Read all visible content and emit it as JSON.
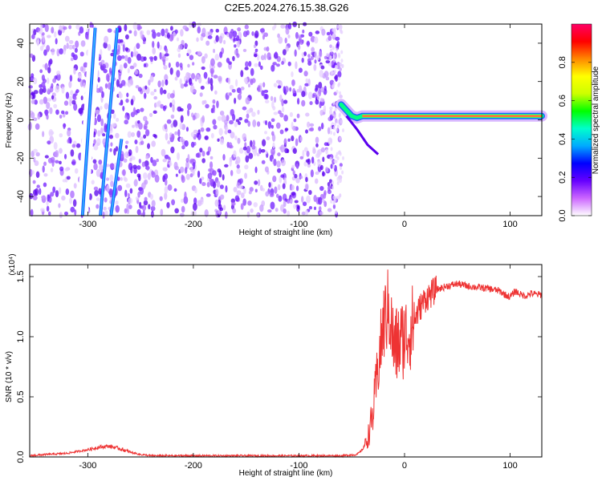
{
  "title": "C2E5.2024.276.15.38.G26",
  "chart_data": [
    {
      "type": "heatmap",
      "xlabel": "Height of straight line (km)",
      "ylabel": "Frequency (Hz)",
      "xlim": [
        -355,
        130
      ],
      "ylim": [
        -50,
        50
      ],
      "xticks": [
        -300,
        -200,
        -100,
        0,
        100
      ],
      "yticks": [
        -40,
        -20,
        0,
        20,
        40
      ],
      "colorbar": {
        "label": "Normalized spectral amplitude",
        "range": [
          0,
          1
        ],
        "ticks": [
          0.0,
          0.2,
          0.4,
          0.6,
          0.8
        ],
        "colors": [
          "#ffffff",
          "#cc66ff",
          "#6600ff",
          "#0000ff",
          "#00aaff",
          "#00ffcc",
          "#00ff00",
          "#ccff00",
          "#ffff00",
          "#ff8800",
          "#ff0000",
          "#ff0066"
        ]
      },
      "streaks": [
        {
          "from": [
            -305,
            -50
          ],
          "to": [
            -293,
            48
          ],
          "amplitude": 0.3
        },
        {
          "from": [
            -288,
            -50
          ],
          "to": [
            -272,
            48
          ],
          "amplitude": 0.25
        },
        {
          "from": [
            -278,
            -50
          ],
          "to": [
            -268,
            -10
          ],
          "amplitude": 0.2
        }
      ],
      "trace": [
        {
          "x": -60,
          "y": 8
        },
        {
          "x": -55,
          "y": 5
        },
        {
          "x": -50,
          "y": 2
        },
        {
          "x": -45,
          "y": 1
        },
        {
          "x": -40,
          "y": 2
        },
        {
          "x": -30,
          "y": 2
        },
        {
          "x": -20,
          "y": 2
        },
        {
          "x": 0,
          "y": 2
        },
        {
          "x": 20,
          "y": 2
        },
        {
          "x": 50,
          "y": 2
        },
        {
          "x": 80,
          "y": 2
        },
        {
          "x": 100,
          "y": 2
        },
        {
          "x": 130,
          "y": 2
        }
      ],
      "noise_extent": [
        -355,
        -60
      ]
    },
    {
      "type": "line",
      "xlabel": "Height of straight line (km)",
      "ylabel": "SNR (10 * v/v)",
      "y_multiplier": "(x10⁴)",
      "xlim": [
        -355,
        130
      ],
      "ylim": [
        0,
        1.6
      ],
      "xticks": [
        -300,
        -200,
        -100,
        0,
        100
      ],
      "yticks": [
        0.0,
        0.5,
        1.0,
        1.5
      ],
      "color": "#ee3333",
      "series": [
        {
          "x": [
            -355,
            -340,
            -320,
            -300,
            -290,
            -280,
            -270,
            -260,
            -250,
            -240,
            -220,
            -200,
            -150,
            -100,
            -60,
            -45,
            -40,
            -35,
            -30,
            -25,
            -20,
            -15,
            -10,
            -5,
            0,
            5,
            10,
            15,
            20,
            30,
            40,
            50,
            60,
            70,
            80,
            90,
            95,
            100,
            105,
            110,
            115,
            120,
            125,
            130
          ],
          "y": [
            0.01,
            0.02,
            0.03,
            0.06,
            0.08,
            0.09,
            0.07,
            0.04,
            0.02,
            0.01,
            0.01,
            0.01,
            0.01,
            0.01,
            0.01,
            0.02,
            0.06,
            0.15,
            0.35,
            0.75,
            1.1,
            1.25,
            0.9,
            0.95,
            1.0,
            1.05,
            1.15,
            1.25,
            1.32,
            1.39,
            1.42,
            1.44,
            1.42,
            1.41,
            1.4,
            1.38,
            1.35,
            1.33,
            1.38,
            1.35,
            1.34,
            1.36,
            1.35,
            1.35
          ]
        }
      ]
    }
  ]
}
